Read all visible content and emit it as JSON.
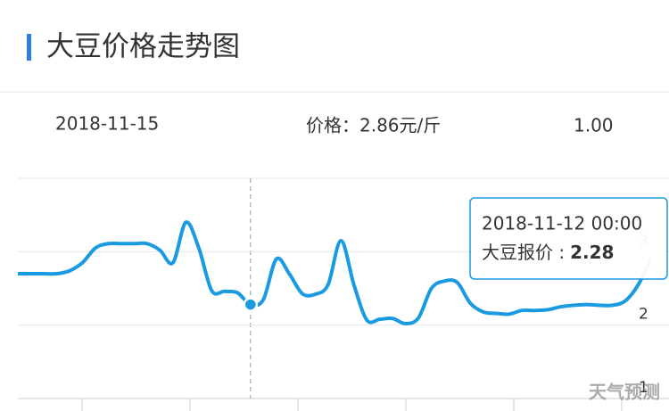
{
  "header": {
    "title": "大豆价格走势图"
  },
  "info": {
    "date": "2018-11-15",
    "price": "价格：2.86元/斤",
    "change": "1.00"
  },
  "chart_data": {
    "type": "line",
    "series": [
      {
        "color": "#1a9ae0",
        "values": [
          2.7,
          2.7,
          2.7,
          2.7,
          2.74,
          2.85,
          3.05,
          3.11,
          3.11,
          3.11,
          3.11,
          3.02,
          2.85,
          3.4,
          3.05,
          2.47,
          2.46,
          2.44,
          2.28,
          2.35,
          2.9,
          2.7,
          2.43,
          2.42,
          2.55,
          3.15,
          2.55,
          2.07,
          2.08,
          2.09,
          2.02,
          2.1,
          2.5,
          2.6,
          2.58,
          2.3,
          2.18,
          2.16,
          2.15,
          2.2,
          2.2,
          2.21,
          2.25,
          2.27,
          2.28,
          2.27,
          2.27,
          2.33,
          2.55,
          2.91
        ]
      }
    ],
    "ylim": [
      1,
      4
    ],
    "yticks": [
      1,
      2,
      3
    ],
    "grid": true,
    "tooltip": {
      "date": "2018-11-12 00:00",
      "label": "大豆报价 :",
      "value": 2.28
    }
  },
  "watermark": "天气预测"
}
